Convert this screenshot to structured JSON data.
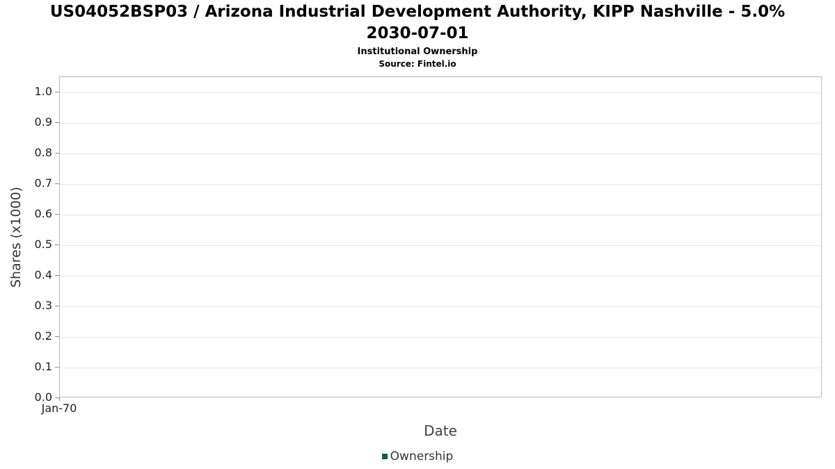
{
  "header": {
    "title_line1": "US04052BSP03 / Arizona Industrial Development Authority, KIPP Nashville - 5.0%",
    "title_line2": "2030-07-01",
    "subtitle": "Institutional Ownership",
    "source": "Source: Fintel.io"
  },
  "chart_data": {
    "type": "line",
    "title": "US04052BSP03 / Arizona Industrial Development Authority, KIPP Nashville - 5.0% 2030-07-01",
    "subtitle": "Institutional Ownership",
    "source": "Source: Fintel.io",
    "xlabel": "Date",
    "ylabel": "Shares (x1000)",
    "ylim": [
      0,
      1.05
    ],
    "y_ticks": [
      0.0,
      0.1,
      0.2,
      0.3,
      0.4,
      0.5,
      0.6,
      0.7,
      0.8,
      0.9,
      1.0
    ],
    "x_ticks": [
      {
        "label": "Jan-70",
        "pos": 0
      }
    ],
    "grid": true,
    "legend_position": "bottom",
    "series": [
      {
        "name": "Ownership",
        "color": "#155d36",
        "x": [],
        "values": []
      }
    ]
  }
}
